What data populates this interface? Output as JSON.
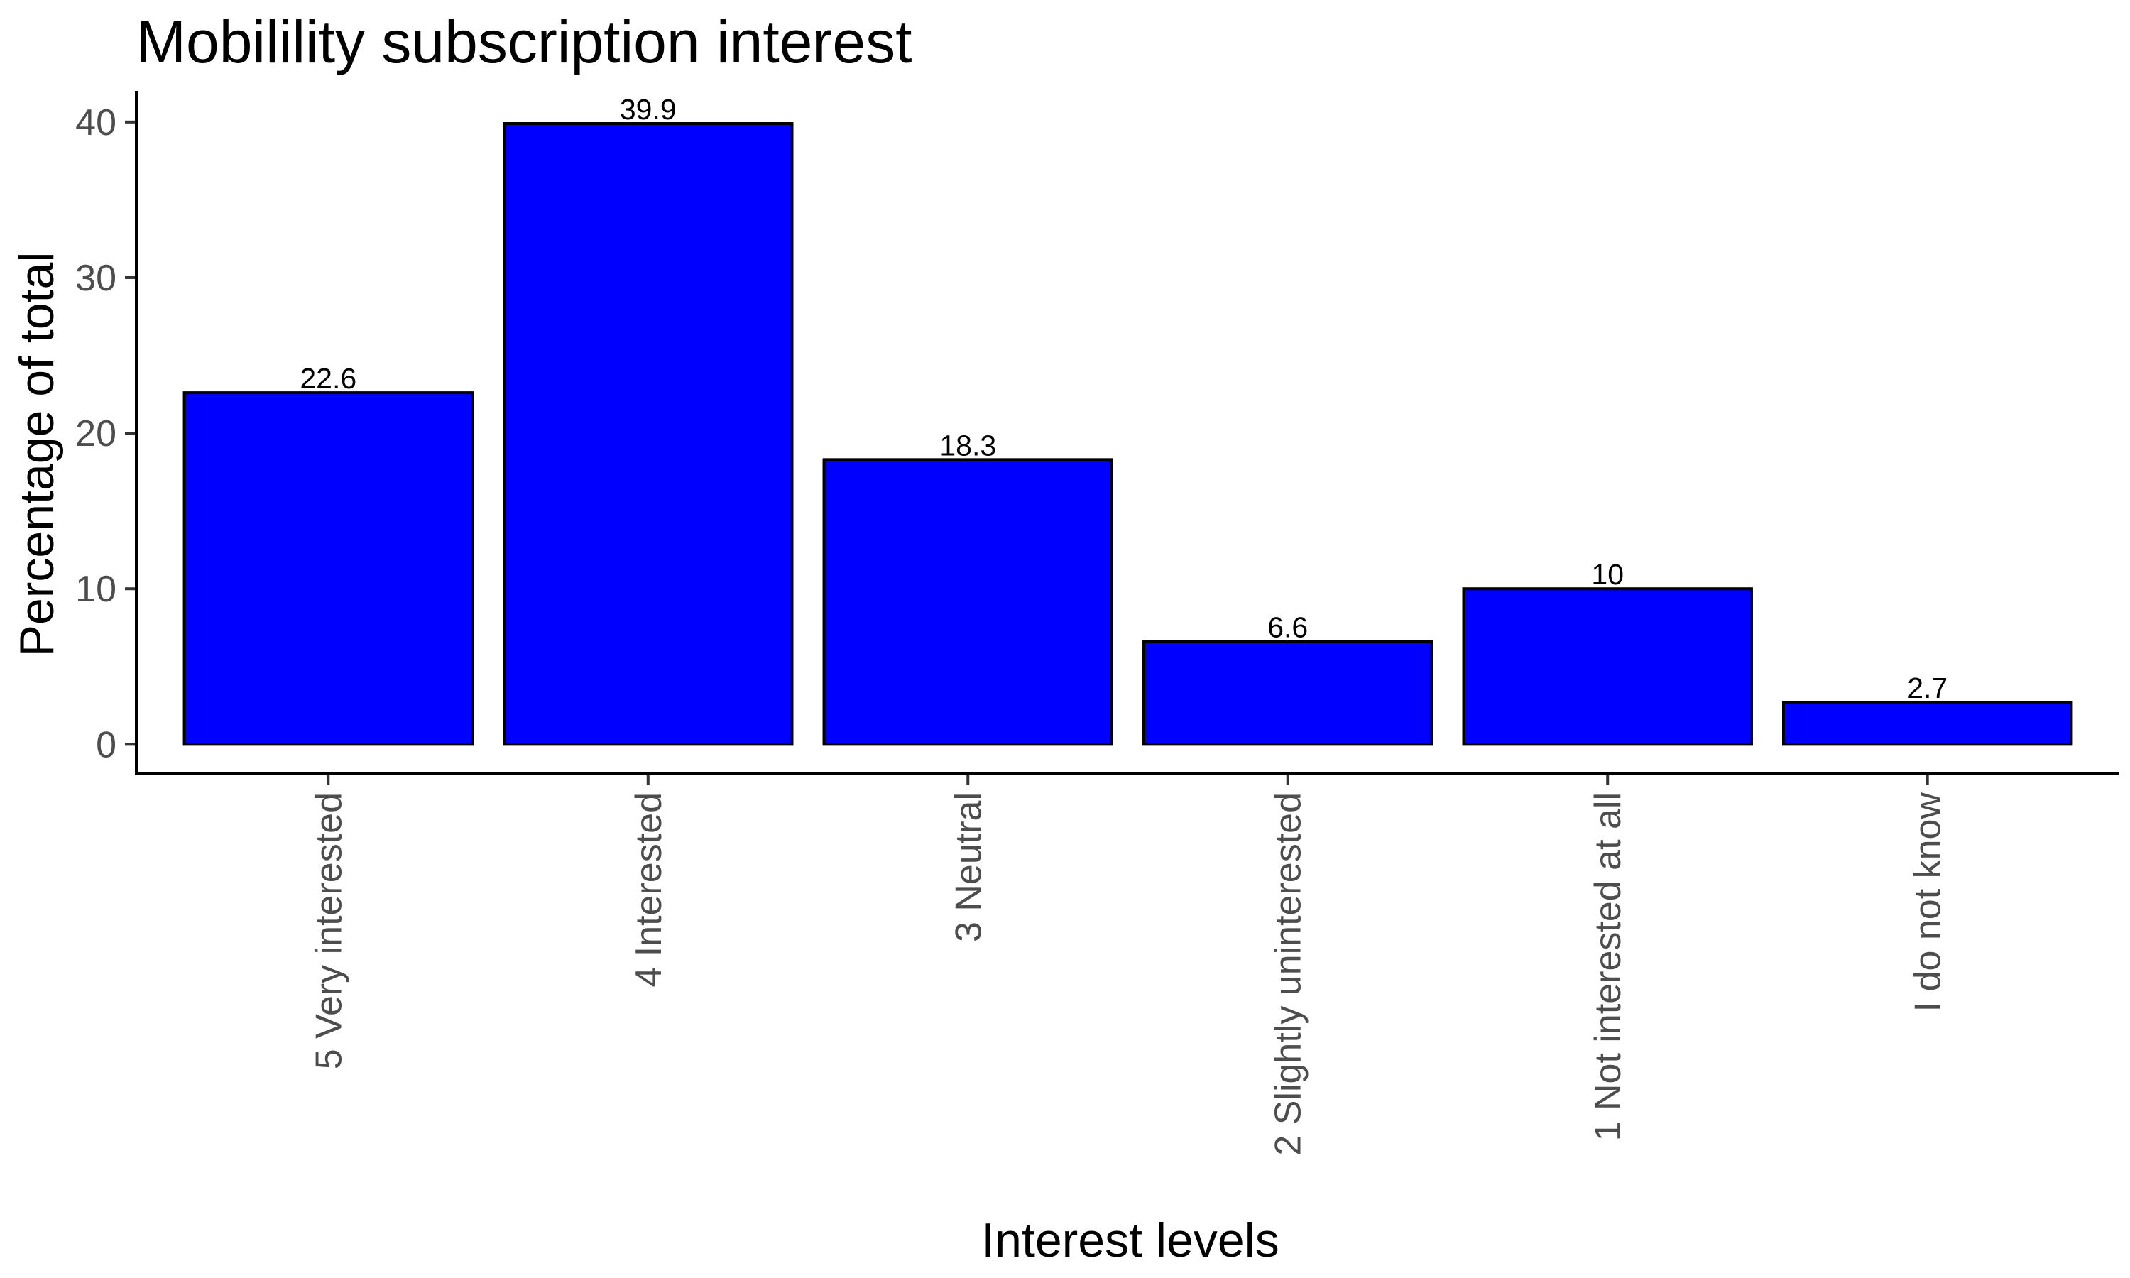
{
  "chart_data": {
    "type": "bar",
    "title": "Mobilility subscription interest",
    "xlabel": "Interest levels",
    "ylabel": "Percentage of total",
    "categories": [
      "5 Very interested",
      "4 Interested",
      "3 Neutral",
      "2 Slightly uninterested",
      "1 Not interested at all",
      "I do not know"
    ],
    "values": [
      22.6,
      39.9,
      18.3,
      6.6,
      10,
      2.7
    ],
    "value_labels": [
      "22.6",
      "39.9",
      "18.3",
      "6.6",
      "10",
      "2.7"
    ],
    "ylim": [
      -1.9,
      42
    ],
    "yticks": [
      0,
      10,
      20,
      30,
      40
    ],
    "ytick_labels": [
      "0",
      "10",
      "20",
      "30",
      "40"
    ],
    "bar_color": "#0000ff",
    "bar_border_color": "#000000",
    "grid": false,
    "legend": "none"
  }
}
